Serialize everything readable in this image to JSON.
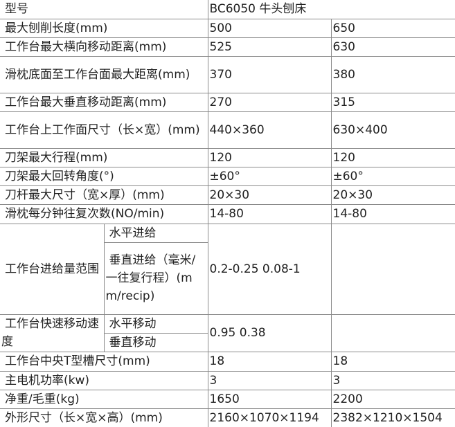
{
  "header": {
    "label": "型号",
    "model": "BC6050 牛头刨床"
  },
  "rows": [
    {
      "label": "最大刨削长度(mm)",
      "v1": "500",
      "v2": "650"
    },
    {
      "label": "工作台最大横向移动距离(mm)",
      "v1": "525",
      "v2": "630"
    },
    {
      "label": "滑枕底面至工作台面最大距离(mm)",
      "v1": "370",
      "v2": "380"
    },
    {
      "label": "工作台最大垂直移动距离(mm)",
      "v1": "270",
      "v2": "315"
    },
    {
      "label": "工作台上工作面尺寸（长×宽）(mm)",
      "v1": "440×360",
      "v2": "630×400"
    },
    {
      "label": "刀架最大行程(mm)",
      "v1": "120",
      "v2": "120"
    },
    {
      "label": "刀架最大回转角度(°)",
      "v1": "±60°",
      "v2": "±60°"
    },
    {
      "label": "刀杆最大尺寸（宽×厚）(mm)",
      "v1": "20×30",
      "v2": "20×30"
    },
    {
      "label": "滑枕每分钟往复次数(NO/min)",
      "v1": "14-80",
      "v2": "14-80"
    }
  ],
  "feed": {
    "label": "工作台进给量范围",
    "sub1": "水平进给",
    "sub2": "垂直进给（毫米/一往复行程）(mm/recip)",
    "value": "0.2-0.25 0.08-1",
    "v2": ""
  },
  "rapid": {
    "label": "工作台快速移动速度",
    "sub1": "水平移动",
    "sub2": "垂直移动",
    "value": "0.95 0.38",
    "v2": ""
  },
  "rows2": [
    {
      "label": "工作台中央T型槽尺寸(mm)",
      "v1": "18",
      "v2": "18"
    },
    {
      "label": "主电机功率(kw)",
      "v1": "3",
      "v2": "3"
    },
    {
      "label": "净重/毛重(kg)",
      "v1": "1650",
      "v2": "2200"
    },
    {
      "label": "外形尺寸（长×宽×高）(mm)",
      "v1": "2160×1070×1194",
      "v2": "2382×1210×1504"
    }
  ]
}
